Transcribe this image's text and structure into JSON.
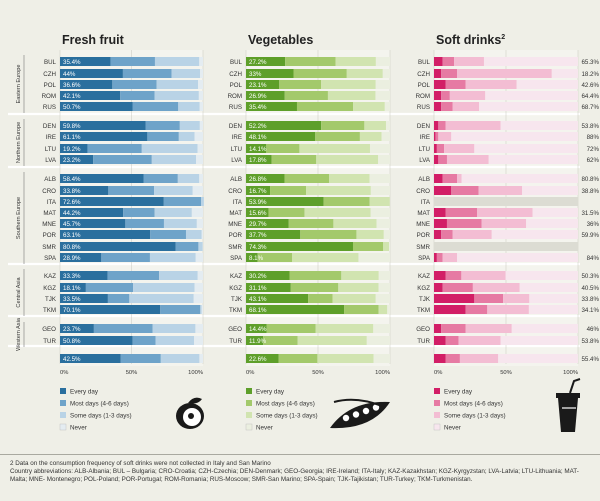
{
  "countries": [
    "BUL",
    "CZH",
    "POL",
    "ROM",
    "RUS",
    "DEN",
    "IRE",
    "LTU",
    "LVA",
    "ALB",
    "CRO",
    "ITA",
    "MAT",
    "MNE",
    "POR",
    "SMR",
    "SPA",
    "KAZ",
    "KGZ",
    "TJK",
    "TKM",
    "GEO",
    "TUR",
    ""
  ],
  "regions": [
    {
      "label": "Eastern Europe",
      "from": 0,
      "to": 4
    },
    {
      "label": "Northern Europe",
      "from": 5,
      "to": 8
    },
    {
      "label": "Southern Europe",
      "from": 9,
      "to": 16
    },
    {
      "label": "Central Asia",
      "from": 17,
      "to": 20
    },
    {
      "label": "Western Asia",
      "from": 21,
      "to": 22
    }
  ],
  "legend_labels": [
    "Every day",
    "Most days (4-6 days)",
    "Some days (1-3 days)",
    "Never"
  ],
  "footnotes": {
    "note": "2 Data on the consumption frequency of soft drinks were not collected in Italy and San Marino",
    "abbreviations": "Country abbreviations: ALB-Albania; BUL – Bulgaria; CRO-Croatia; CZH-Czechia; DEN-Denmark; GEO-Georgia; IRE-Ireland; ITA-Italy; KAZ-Kazakhstan; KGZ-Kyrgyzstan; LVA-Latvia; LTU-Lithuania; MAT-Malta; MNE- Montenegro; POL-Poland; POR-Portugal; ROM-Romania; RUS-Moscow; SMR-San Marino; SPA-Spain; TJK-Tajikistan; TUR-Turkey; TKM-Turkmenistan."
  },
  "chart_data": [
    {
      "type": "bar",
      "stacked": true,
      "orientation": "horizontal",
      "title": "Fresh fruit",
      "categories": [
        "BUL",
        "CZH",
        "POL",
        "ROM",
        "RUS",
        "DEN",
        "IRE",
        "LTU",
        "LVA",
        "ALB",
        "CRO",
        "ITA",
        "MAT",
        "MNE",
        "POR",
        "SMR",
        "SPA",
        "KAZ",
        "KGZ",
        "TJK",
        "TKM",
        "GEO",
        "TUR",
        ""
      ],
      "value_labels": [
        "35.4%",
        "44%",
        "36.6%",
        "42.1%",
        "50.7%",
        "59.8%",
        "61.1%",
        "19.2%",
        "23.2%",
        "58.4%",
        "33.8%",
        "72.6%",
        "44.2%",
        "45.7%",
        "63.1%",
        "80.8%",
        "28.9%",
        "33.3%",
        "18.1%",
        "33.5%",
        "70.1%",
        "23.7%",
        "50.8%",
        "42.5%"
      ],
      "xlim": [
        0,
        100
      ],
      "x_ticks": [
        "0%",
        "50%",
        "100%"
      ],
      "colors": [
        "#2a6f9e",
        "#6ea3c9",
        "#b9d3e6",
        "#e4ecf1"
      ],
      "series": [
        {
          "name": "Every day",
          "values": [
            35.4,
            44,
            36.6,
            42.1,
            50.7,
            59.8,
            61.1,
            19.2,
            23.2,
            58.4,
            33.8,
            72.6,
            44.2,
            45.7,
            63.1,
            80.8,
            28.9,
            33.3,
            18.1,
            33.5,
            70.1,
            23.7,
            50.8,
            42.5
          ]
        },
        {
          "name": "Most days (4-6 days)",
          "values": [
            31,
            34,
            31,
            24,
            32,
            24,
            22,
            38,
            41,
            24,
            32,
            26,
            22,
            27,
            25,
            16,
            34,
            36,
            33,
            15,
            28,
            41,
            16,
            28
          ]
        },
        {
          "name": "Some days (1-3 days)",
          "values": [
            31,
            20,
            29,
            31,
            15,
            14,
            11,
            39,
            31,
            15,
            27,
            2,
            26,
            23,
            11,
            3,
            32,
            27,
            43,
            45,
            1,
            30,
            27,
            27
          ]
        },
        {
          "name": "Never",
          "values": [
            2.6,
            2,
            3.4,
            2.9,
            2.3,
            2.2,
            5.9,
            3.8,
            4.8,
            2.6,
            7.2,
            0,
            7.8,
            4.3,
            0.9,
            0.2,
            5.1,
            3.7,
            5.9,
            6.5,
            0.9,
            5.3,
            6.2,
            2.5
          ]
        }
      ]
    },
    {
      "type": "bar",
      "stacked": true,
      "orientation": "horizontal",
      "title": "Vegetables",
      "categories": [
        "BUL",
        "CZH",
        "POL",
        "ROM",
        "RUS",
        "DEN",
        "IRE",
        "LTU",
        "LVA",
        "ALB",
        "CRO",
        "ITA",
        "MAT",
        "MNE",
        "POR",
        "SMR",
        "SPA",
        "KAZ",
        "KGZ",
        "TJK",
        "TKM",
        "GEO",
        "TUR",
        ""
      ],
      "value_labels": [
        "27.2%",
        "33%",
        "23.1%",
        "26.9%",
        "35.4%",
        "52.2%",
        "48.1%",
        "14.1%",
        "17.8%",
        "26.8%",
        "16.7%",
        "53.9%",
        "15.6%",
        "29.7%",
        "37.7%",
        "74.3%",
        "8.1%",
        "30.2%",
        "31.1%",
        "43.1%",
        "68.1%",
        "14.4%",
        "11.9%",
        "22.6%"
      ],
      "xlim": [
        0,
        100
      ],
      "x_ticks": [
        "0%",
        "50%",
        "100%"
      ],
      "colors": [
        "#5e9f2a",
        "#a3c96b",
        "#d1e4b0",
        "#ebefe0"
      ],
      "series": [
        {
          "name": "Every day",
          "values": [
            27.2,
            33,
            23.1,
            26.9,
            35.4,
            52.2,
            48.1,
            14.1,
            17.8,
            26.8,
            16.7,
            53.9,
            15.6,
            29.7,
            37.7,
            74.3,
            8.1,
            30.2,
            31.1,
            43.1,
            68.1,
            14.4,
            11.9,
            22.6
          ]
        },
        {
          "name": "Most days (4-6 days)",
          "values": [
            35,
            37,
            29,
            30,
            39,
            30,
            31,
            23,
            31,
            31,
            25,
            32,
            25,
            31,
            39,
            21,
            24,
            36,
            33,
            17,
            24,
            34,
            24,
            27
          ]
        },
        {
          "name": "Some days (1-3 days)",
          "values": [
            28,
            25,
            38,
            33,
            22,
            15,
            15,
            49,
            43,
            28,
            45,
            14,
            46,
            30,
            19,
            4,
            46,
            26,
            28,
            30,
            6,
            40,
            48,
            39
          ]
        },
        {
          "name": "Never",
          "values": [
            9.8,
            5,
            9.9,
            10.1,
            3.6,
            2.8,
            5.9,
            13.9,
            8.2,
            14.2,
            13.3,
            0.1,
            13.4,
            9.3,
            4.3,
            0.7,
            21.9,
            7.8,
            7.9,
            9.9,
            1.9,
            11.6,
            16.1,
            11.4
          ]
        }
      ]
    },
    {
      "type": "bar",
      "stacked": true,
      "orientation": "horizontal",
      "title": "Soft drinks",
      "title_superscript": "2",
      "categories": [
        "BUL",
        "CZH",
        "POL",
        "ROM",
        "RUS",
        "DEN",
        "IRE",
        "LTU",
        "LVA",
        "ALB",
        "CRO",
        "ITA",
        "MAT",
        "MNE",
        "POR",
        "SMR",
        "SPA",
        "KAZ",
        "KGZ",
        "TJK",
        "TKM",
        "GEO",
        "TUR",
        ""
      ],
      "value_labels": [
        "65.3%",
        "18.2%",
        "42.6%",
        "64.4%",
        "68.7%",
        "53.8%",
        "88%",
        "72%",
        "62%",
        "80.8%",
        "38.8%",
        "",
        "31.5%",
        "36%",
        "59.9%",
        "",
        "84%",
        "50.3%",
        "40.5%",
        "33.8%",
        "34.1%",
        "46%",
        "53.8%",
        "55.4%"
      ],
      "xlim": [
        0,
        100
      ],
      "x_ticks": [
        "0%",
        "50%",
        "100%"
      ],
      "colors": [
        "#d21e66",
        "#e67aa3",
        "#f3bdd3",
        "#f7e6ee"
      ],
      "series": [
        {
          "name": "Every day",
          "values": [
            6,
            5,
            8,
            5,
            5,
            3,
            1,
            2,
            3,
            6,
            12,
            0,
            8,
            9,
            5,
            0,
            2,
            8,
            6,
            28,
            22,
            5,
            8,
            8
          ]
        },
        {
          "name": "Most days (4-6 days)",
          "values": [
            8,
            11,
            14,
            6,
            8,
            5,
            2,
            5,
            6,
            10,
            19,
            0,
            22,
            24,
            8,
            0,
            4,
            11,
            21,
            20,
            15,
            17,
            9,
            10
          ]
        },
        {
          "name": "Some days (1-3 days)",
          "values": [
            20.7,
            65.8,
            35.4,
            24.6,
            18.3,
            38.2,
            9,
            21,
            29,
            3.2,
            30.2,
            0,
            38.5,
            31,
            27.1,
            0,
            10,
            30.7,
            32.5,
            18.2,
            28.9,
            32,
            29.2,
            26.6
          ]
        },
        {
          "name": "Never",
          "values": [
            65.3,
            18.2,
            42.6,
            64.4,
            68.7,
            53.8,
            88,
            72,
            62,
            80.8,
            38.8,
            0,
            31.5,
            36,
            59.9,
            0,
            84,
            50.3,
            40.5,
            33.8,
            34.1,
            46,
            53.8,
            55.4
          ]
        }
      ]
    }
  ]
}
